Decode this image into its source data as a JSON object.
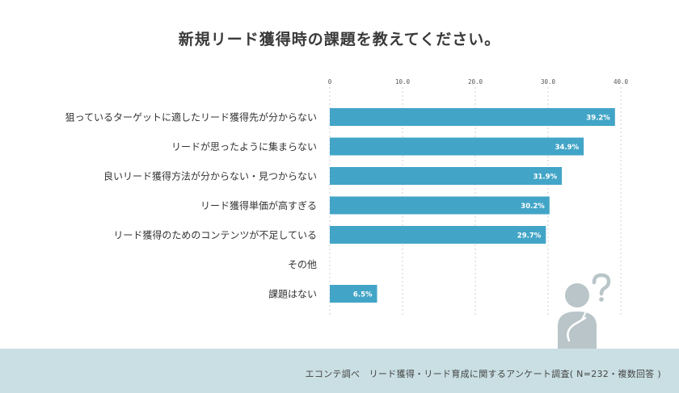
{
  "title": "新規リード獲得時の課題を教えてください。",
  "footer": "エコンテ調べ　リード獲得・リード育成に関するアンケート調査( N=232・複数回答 )",
  "colors": {
    "bar": "#42a5c7",
    "grid": "#cfcfcf",
    "footer_bg": "#c9dfe3",
    "figure": "#b9c5c8"
  },
  "chart_data": {
    "type": "bar",
    "orientation": "horizontal",
    "categories": [
      "狙っているターゲットに適したリード獲得先が分からない",
      "リードが思ったように集まらない",
      "良いリード獲得方法が分からない・見つからない",
      "リード獲得単価が高すぎる",
      "リード獲得のためのコンテンツが不足している",
      "その他",
      "課題はない"
    ],
    "values": [
      39.2,
      34.9,
      31.9,
      30.2,
      29.7,
      null,
      6.5
    ],
    "value_labels": [
      "39.2%",
      "34.9%",
      "31.9%",
      "30.2%",
      "29.7%",
      "",
      "6.5%"
    ],
    "xlim": [
      0,
      40
    ],
    "ticks": [
      0,
      10,
      20,
      30,
      40
    ],
    "tick_labels": [
      "0",
      "10.0",
      "20.0",
      "30.0",
      "40.0"
    ],
    "grid": true
  }
}
